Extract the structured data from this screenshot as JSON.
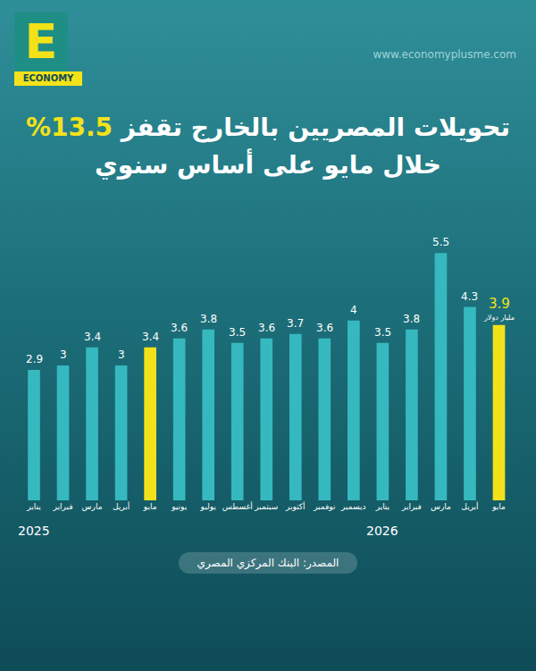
{
  "brand": "ECONOMY",
  "website": "www.economyplusme.com",
  "source": "المصدر: البنك المركزي المصري",
  "chart_data": {
    "type": "bar",
    "title": "تحويلات المصريين بالخارج تقفز 13.5%",
    "subtitle": "خلال مايو على أساس سنوي",
    "categories": [
      "يناير",
      "فبراير",
      "مارس",
      "أبريل",
      "مايو",
      "يونيو",
      "يوليو",
      "أغسطس",
      "سبتمبر",
      "أكتوبر",
      "نوفمبر",
      "ديسمبر",
      "يناير",
      "فبراير",
      "مارس",
      "أبريل",
      "مايو"
    ],
    "values": [
      2.9,
      3,
      3.4,
      3,
      3.4,
      3.6,
      3.8,
      3.5,
      3.6,
      3.7,
      3.6,
      4,
      3.5,
      3.8,
      5.5,
      4.3,
      3.9
    ],
    "colors": [
      "#36b8bf",
      "#36b8bf",
      "#36b8bf",
      "#36b8bf",
      "#f3e21a",
      "#36b8bf",
      "#36b8bf",
      "#36b8bf",
      "#36b8bf",
      "#36b8bf",
      "#36b8bf",
      "#36b8bf",
      "#36b8bf",
      "#36b8bf",
      "#36b8bf",
      "#36b8bf",
      "#f3e21a"
    ],
    "annotations": [
      {
        "text": "2025",
        "category_index": 0
      },
      {
        "text": "2026",
        "category_index": 12
      },
      {
        "text": "مليار دولار",
        "category_index": 16
      }
    ],
    "ylim": [
      0,
      6
    ],
    "yticks": [],
    "grid": false,
    "data_labels": true,
    "tick_labels": "x"
  }
}
